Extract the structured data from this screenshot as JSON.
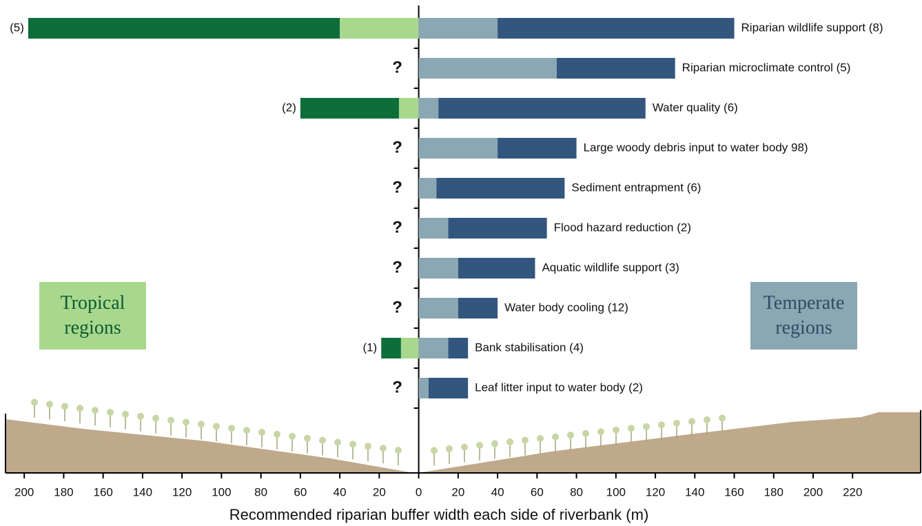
{
  "chart_data": {
    "type": "bar",
    "orientation": "horizontal",
    "x_label": "Recommended riparian buffer width each side of riverbank (m)",
    "xlim": [
      -209.5,
      254.5
    ],
    "xticks": [
      {
        "value": -200,
        "label": "200"
      },
      {
        "value": -180,
        "label": "180"
      },
      {
        "value": -160,
        "label": "160"
      },
      {
        "value": -140,
        "label": "140"
      },
      {
        "value": -120,
        "label": "120"
      },
      {
        "value": -100,
        "label": "100"
      },
      {
        "value": -80,
        "label": "80"
      },
      {
        "value": -60,
        "label": "60"
      },
      {
        "value": -40,
        "label": "40"
      },
      {
        "value": -20,
        "label": "20"
      },
      0,
      20,
      40,
      60,
      80,
      100,
      120,
      140,
      160,
      180,
      200,
      220
    ],
    "categories": [
      "Riparian wildlife support (8)",
      "Riparian microclimate control (5)",
      "Water quality (6)",
      "Large woody debris input to water body 98)",
      "Sediment entrapment (6)",
      "Flood hazard reduction (2)",
      "Aquatic wildlife support (3)",
      "Water body cooling (12)",
      "Bank stabilisation (4)",
      "Leaf litter input to water body (2)"
    ],
    "left_labels": [
      "(5)",
      "?",
      "(2)",
      "?",
      "?",
      "?",
      "?",
      "?",
      "(1)",
      "?"
    ],
    "series": [
      {
        "color": "#a8d88e",
        "values": [
          -40,
          null,
          -10,
          null,
          null,
          null,
          null,
          null,
          -9,
          null
        ]
      },
      {
        "color": "#0e6e3a",
        "values": [
          -158,
          null,
          -50,
          null,
          null,
          null,
          null,
          null,
          -10,
          null
        ]
      },
      {
        "color": "#8aa7b3",
        "values": [
          40,
          70,
          10,
          40,
          9,
          15,
          20,
          20,
          15,
          5
        ]
      },
      {
        "color": "#33567e",
        "values": [
          120,
          60,
          105,
          40,
          65,
          50,
          39,
          20,
          10,
          20
        ]
      }
    ],
    "annotations": [
      "Tropical regions",
      "Temperate regions"
    ]
  }
}
